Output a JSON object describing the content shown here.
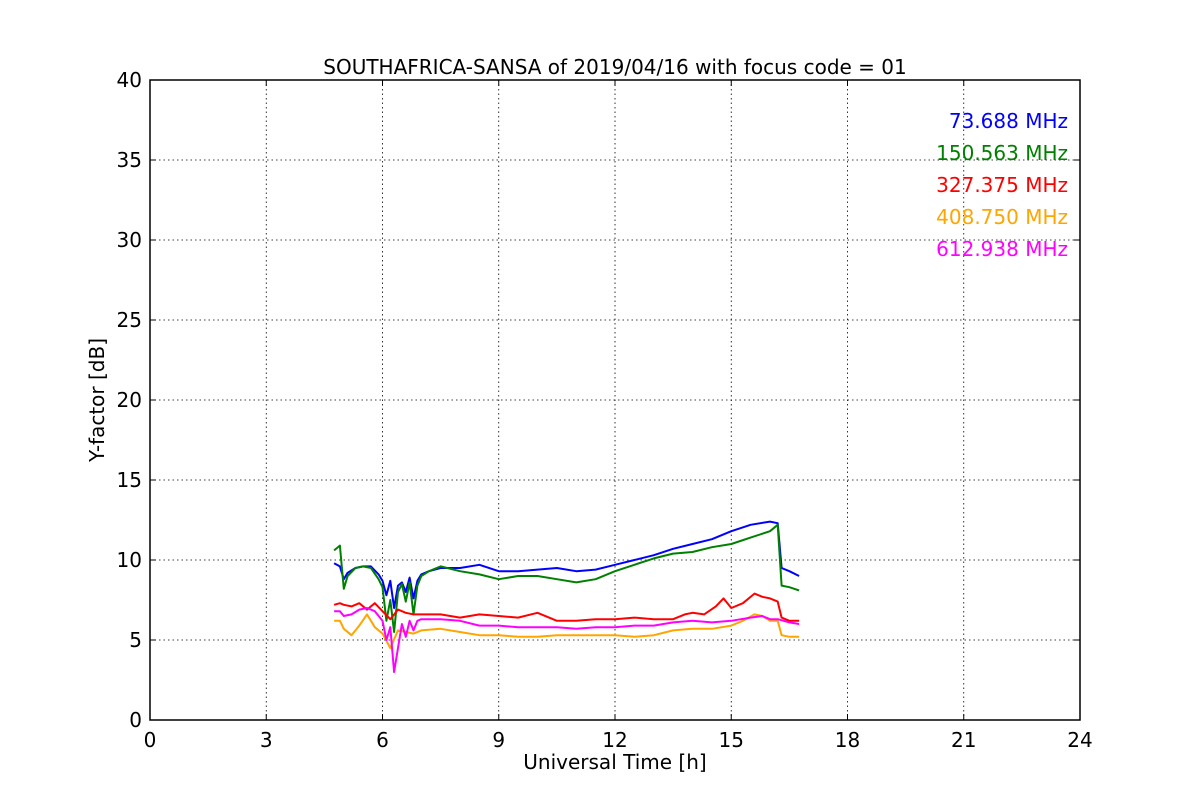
{
  "chart_data": {
    "type": "line",
    "title": "SOUTHAFRICA-SANSA of 2019/04/16 with focus code = 01",
    "xlabel": "Universal Time [h]",
    "ylabel": "Y-factor [dB]",
    "xlim": [
      0,
      24
    ],
    "ylim": [
      0,
      40
    ],
    "xticks": [
      0,
      3,
      6,
      9,
      12,
      15,
      18,
      21,
      24
    ],
    "yticks": [
      0,
      5,
      10,
      15,
      20,
      25,
      30,
      35,
      40
    ],
    "grid": true,
    "legend_position": "top-right",
    "series": [
      {
        "name": "73.688 MHz",
        "color": "#0000ff",
        "x": [
          4.75,
          4.9,
          5.0,
          5.1,
          5.3,
          5.5,
          5.7,
          5.9,
          6.0,
          6.1,
          6.2,
          6.3,
          6.4,
          6.5,
          6.6,
          6.7,
          6.8,
          6.9,
          7.0,
          7.2,
          7.5,
          8.0,
          8.5,
          9.0,
          9.5,
          10.0,
          10.5,
          11.0,
          11.5,
          12.0,
          12.5,
          13.0,
          13.5,
          14.0,
          14.5,
          15.0,
          15.5,
          16.0,
          16.2,
          16.3,
          16.5,
          16.75
        ],
        "y": [
          9.8,
          9.6,
          8.8,
          9.2,
          9.5,
          9.6,
          9.6,
          9.1,
          8.7,
          7.8,
          8.7,
          7.0,
          8.4,
          8.6,
          8.0,
          8.9,
          7.6,
          8.7,
          9.1,
          9.3,
          9.5,
          9.5,
          9.7,
          9.3,
          9.3,
          9.4,
          9.5,
          9.3,
          9.4,
          9.7,
          10.0,
          10.3,
          10.7,
          11.0,
          11.3,
          11.8,
          12.2,
          12.4,
          12.3,
          9.5,
          9.3,
          9.0
        ]
      },
      {
        "name": "150.563 MHz",
        "color": "#008000",
        "x": [
          4.75,
          4.9,
          5.0,
          5.1,
          5.3,
          5.5,
          5.7,
          5.9,
          6.0,
          6.1,
          6.2,
          6.3,
          6.4,
          6.5,
          6.6,
          6.7,
          6.8,
          6.9,
          7.0,
          7.2,
          7.5,
          8.0,
          8.5,
          9.0,
          9.5,
          10.0,
          10.5,
          11.0,
          11.5,
          12.0,
          12.5,
          13.0,
          13.5,
          14.0,
          14.5,
          15.0,
          15.5,
          16.0,
          16.2,
          16.3,
          16.5,
          16.75
        ],
        "y": [
          10.6,
          10.9,
          8.2,
          9.0,
          9.5,
          9.6,
          9.5,
          8.8,
          8.3,
          6.2,
          7.5,
          5.5,
          8.0,
          8.5,
          7.4,
          8.6,
          6.6,
          8.4,
          9.0,
          9.3,
          9.6,
          9.3,
          9.1,
          8.8,
          9.0,
          9.0,
          8.8,
          8.6,
          8.8,
          9.3,
          9.7,
          10.1,
          10.4,
          10.5,
          10.8,
          11.0,
          11.4,
          11.8,
          12.2,
          8.4,
          8.3,
          8.1
        ]
      },
      {
        "name": "327.375 MHz",
        "color": "#ff0000",
        "x": [
          4.75,
          4.9,
          5.0,
          5.2,
          5.4,
          5.6,
          5.8,
          6.0,
          6.2,
          6.4,
          6.6,
          6.8,
          7.0,
          7.5,
          8.0,
          8.5,
          9.0,
          9.5,
          10.0,
          10.5,
          11.0,
          11.5,
          12.0,
          12.5,
          13.0,
          13.5,
          13.8,
          14.0,
          14.3,
          14.6,
          14.8,
          15.0,
          15.3,
          15.6,
          15.8,
          16.0,
          16.2,
          16.3,
          16.5,
          16.75
        ],
        "y": [
          7.2,
          7.3,
          7.2,
          7.1,
          7.3,
          6.9,
          7.3,
          6.8,
          6.3,
          6.9,
          6.7,
          6.6,
          6.6,
          6.6,
          6.4,
          6.6,
          6.5,
          6.4,
          6.7,
          6.2,
          6.2,
          6.3,
          6.3,
          6.4,
          6.3,
          6.3,
          6.6,
          6.7,
          6.6,
          7.1,
          7.6,
          7.0,
          7.3,
          7.9,
          7.7,
          7.6,
          7.4,
          6.4,
          6.2,
          6.2
        ]
      },
      {
        "name": "408.750 MHz",
        "color": "#ffa500",
        "x": [
          4.75,
          4.9,
          5.0,
          5.2,
          5.4,
          5.6,
          5.8,
          6.0,
          6.2,
          6.4,
          6.6,
          6.8,
          7.0,
          7.5,
          8.0,
          8.5,
          9.0,
          9.5,
          10.0,
          10.5,
          11.0,
          11.5,
          12.0,
          12.5,
          13.0,
          13.5,
          14.0,
          14.5,
          15.0,
          15.3,
          15.6,
          15.8,
          16.0,
          16.2,
          16.3,
          16.5,
          16.75
        ],
        "y": [
          6.2,
          6.2,
          5.7,
          5.3,
          5.9,
          6.6,
          5.8,
          5.4,
          4.5,
          5.6,
          5.5,
          5.4,
          5.6,
          5.7,
          5.5,
          5.3,
          5.3,
          5.2,
          5.2,
          5.3,
          5.3,
          5.3,
          5.3,
          5.2,
          5.3,
          5.6,
          5.7,
          5.7,
          5.9,
          6.2,
          6.6,
          6.5,
          6.2,
          6.2,
          5.3,
          5.2,
          5.2
        ]
      },
      {
        "name": "612.938 MHz",
        "color": "#ff00ff",
        "x": [
          4.75,
          4.9,
          5.0,
          5.2,
          5.4,
          5.6,
          5.8,
          6.0,
          6.1,
          6.2,
          6.3,
          6.4,
          6.5,
          6.6,
          6.7,
          6.8,
          6.9,
          7.0,
          7.5,
          8.0,
          8.5,
          9.0,
          9.5,
          10.0,
          10.5,
          11.0,
          11.5,
          12.0,
          12.5,
          13.0,
          13.5,
          14.0,
          14.5,
          15.0,
          15.5,
          15.8,
          16.0,
          16.2,
          16.5,
          16.75
        ],
        "y": [
          6.8,
          6.8,
          6.5,
          6.6,
          6.9,
          7.0,
          6.8,
          6.2,
          5.0,
          5.8,
          3.0,
          4.5,
          6.0,
          5.2,
          6.2,
          5.6,
          6.2,
          6.3,
          6.3,
          6.2,
          5.9,
          5.9,
          5.8,
          5.8,
          5.8,
          5.7,
          5.8,
          5.8,
          5.9,
          5.9,
          6.1,
          6.2,
          6.1,
          6.2,
          6.4,
          6.5,
          6.3,
          6.3,
          6.1,
          6.0
        ]
      }
    ]
  }
}
